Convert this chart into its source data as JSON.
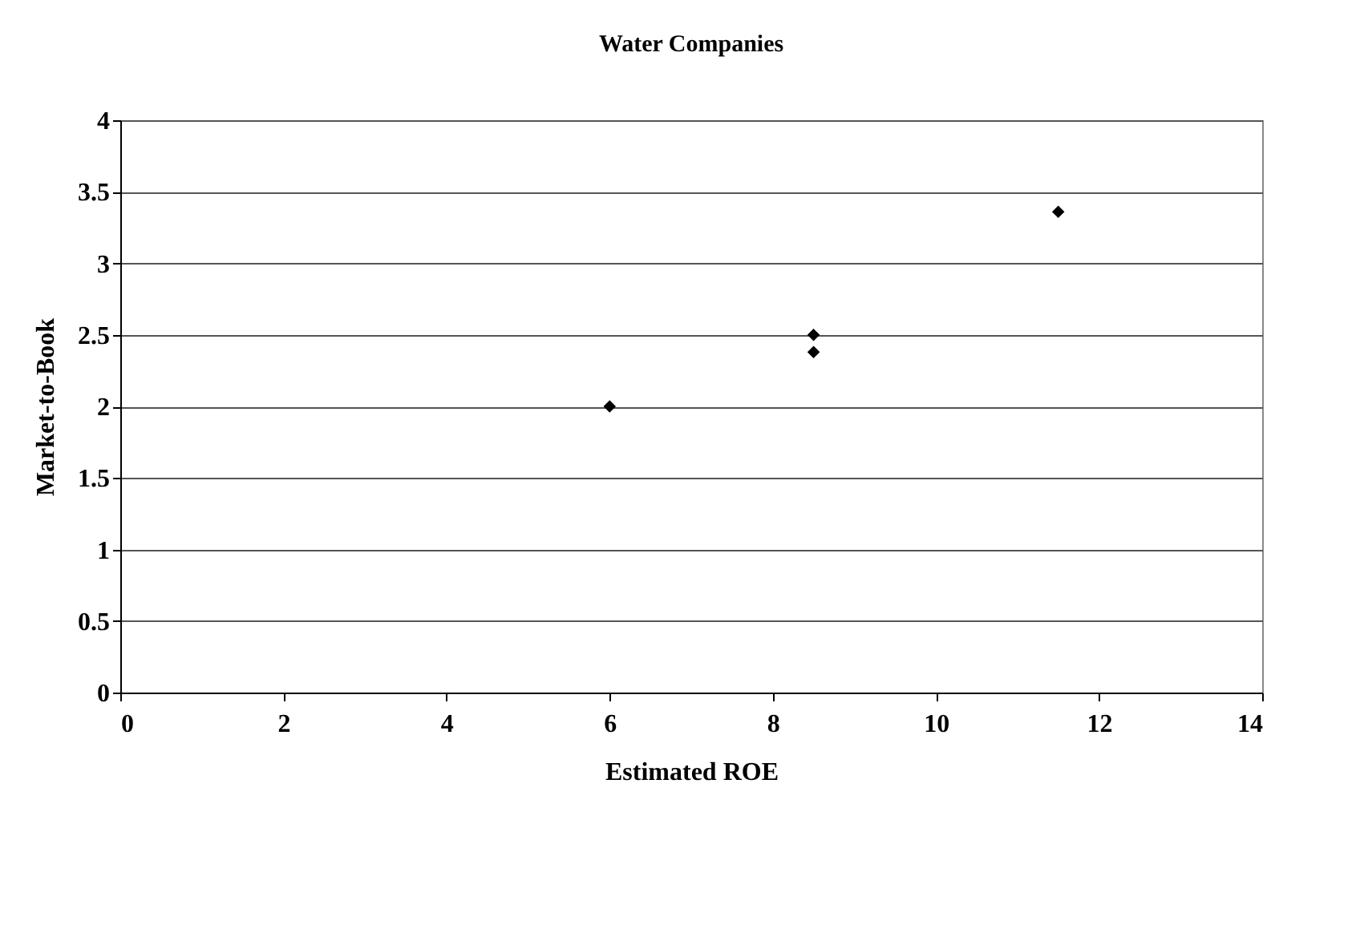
{
  "chart_data": {
    "type": "scatter",
    "title": "Water Companies",
    "xlabel": "Estimated ROE",
    "ylabel": "Market-to-Book",
    "x": [
      6,
      8.5,
      8.5,
      11.5
    ],
    "series": [
      {
        "color": "#000000",
        "values": [
          2.0,
          2.5,
          2.38,
          3.36
        ]
      }
    ],
    "xlim": [
      0,
      14
    ],
    "xticks": [
      0,
      2,
      4,
      6,
      8,
      10,
      12,
      14
    ],
    "ylim": [
      0,
      4
    ],
    "yticks": [
      0,
      0.5,
      1,
      1.5,
      2,
      2.5,
      3,
      3.5,
      4
    ],
    "grid": "y",
    "marker": "diamond"
  }
}
